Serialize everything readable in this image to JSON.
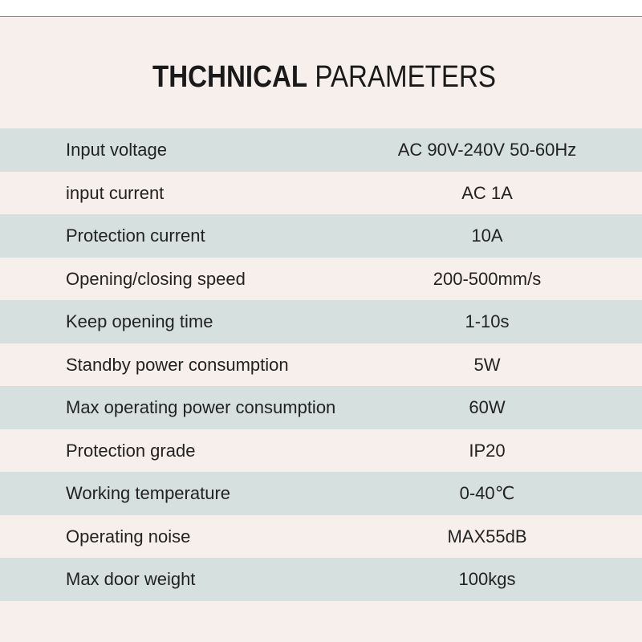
{
  "title": {
    "bold": "THCHNICAL",
    "regular": "PARAMETERS"
  },
  "table": {
    "rows": [
      [
        "Input voltage",
        "AC 90V-240V 50-60Hz"
      ],
      [
        "input current",
        "AC 1A"
      ],
      [
        "Protection current",
        "10A"
      ],
      [
        "Opening/closing speed",
        "200-500mm/s"
      ],
      [
        "Keep opening time",
        "1-10s"
      ],
      [
        "Standby power consumption",
        "5W"
      ],
      [
        "Max operating power consumption",
        "60W"
      ],
      [
        "Protection grade",
        "IP20"
      ],
      [
        "Working temperature",
        "0-40℃"
      ],
      [
        "Operating noise",
        "MAX55dB"
      ],
      [
        "Max door weight",
        "100kgs"
      ]
    ]
  }
}
